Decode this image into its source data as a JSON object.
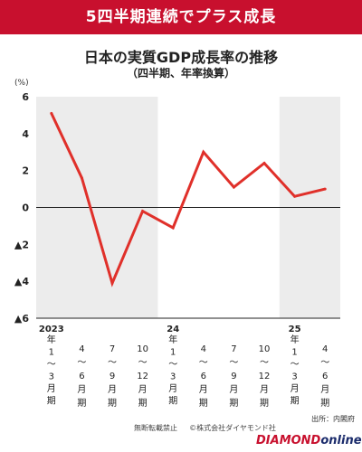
{
  "banner": {
    "text": "5四半期連続でプラス成長"
  },
  "footer": {
    "source": "出所：内閣府",
    "notice": "無断転載禁止",
    "copyright": "©株式会社ダイヤモンド社",
    "logo_part1": "DIAMOND",
    "logo_part2": "online"
  },
  "colors": {
    "accent": "#c8102e",
    "line": "#e0302a",
    "shade": "#ececec",
    "logo_blue": "#1a2b6b"
  },
  "chart_data": {
    "type": "line",
    "title": "日本の実質GDP成長率の推移",
    "subtitle": "（四半期、年率換算）",
    "unit": "(%)",
    "ylim": [
      -6,
      6
    ],
    "yticks": [
      6,
      4,
      2,
      0,
      -2,
      -4,
      -6
    ],
    "ytick_labels": [
      "6",
      "4",
      "2",
      "0",
      "▲2",
      "▲4",
      "▲6"
    ],
    "categories": [
      "2023年1〜3月期",
      "4〜6月期",
      "7〜9月期",
      "10〜12月期",
      "24年1〜3月期",
      "4〜6月期",
      "7〜9月期",
      "10〜12月期",
      "25年1〜3月期",
      "4〜6月期"
    ],
    "tick_year": [
      "2023",
      "",
      "",
      "",
      "24",
      "",
      "",
      "",
      "25",
      ""
    ],
    "tick_chars": [
      [
        "年",
        "1",
        "〜",
        "3",
        "月",
        "期"
      ],
      [
        "4",
        "〜",
        "6",
        "月",
        "期"
      ],
      [
        "7",
        "〜",
        "9",
        "月",
        "期"
      ],
      [
        "10",
        "〜",
        "12",
        "月",
        "期"
      ],
      [
        "年",
        "1",
        "〜",
        "3",
        "月",
        "期"
      ],
      [
        "4",
        "〜",
        "6",
        "月",
        "期"
      ],
      [
        "7",
        "〜",
        "9",
        "月",
        "期"
      ],
      [
        "10",
        "〜",
        "12",
        "月",
        "期"
      ],
      [
        "年",
        "1",
        "〜",
        "3",
        "月",
        "期"
      ],
      [
        "4",
        "〜",
        "6",
        "月",
        "期"
      ]
    ],
    "values": [
      5.1,
      1.6,
      -4.1,
      -0.2,
      -1.1,
      3.0,
      1.1,
      2.4,
      0.6,
      1.0
    ],
    "shaded_years": [
      "2023",
      "25"
    ],
    "grid": false
  }
}
